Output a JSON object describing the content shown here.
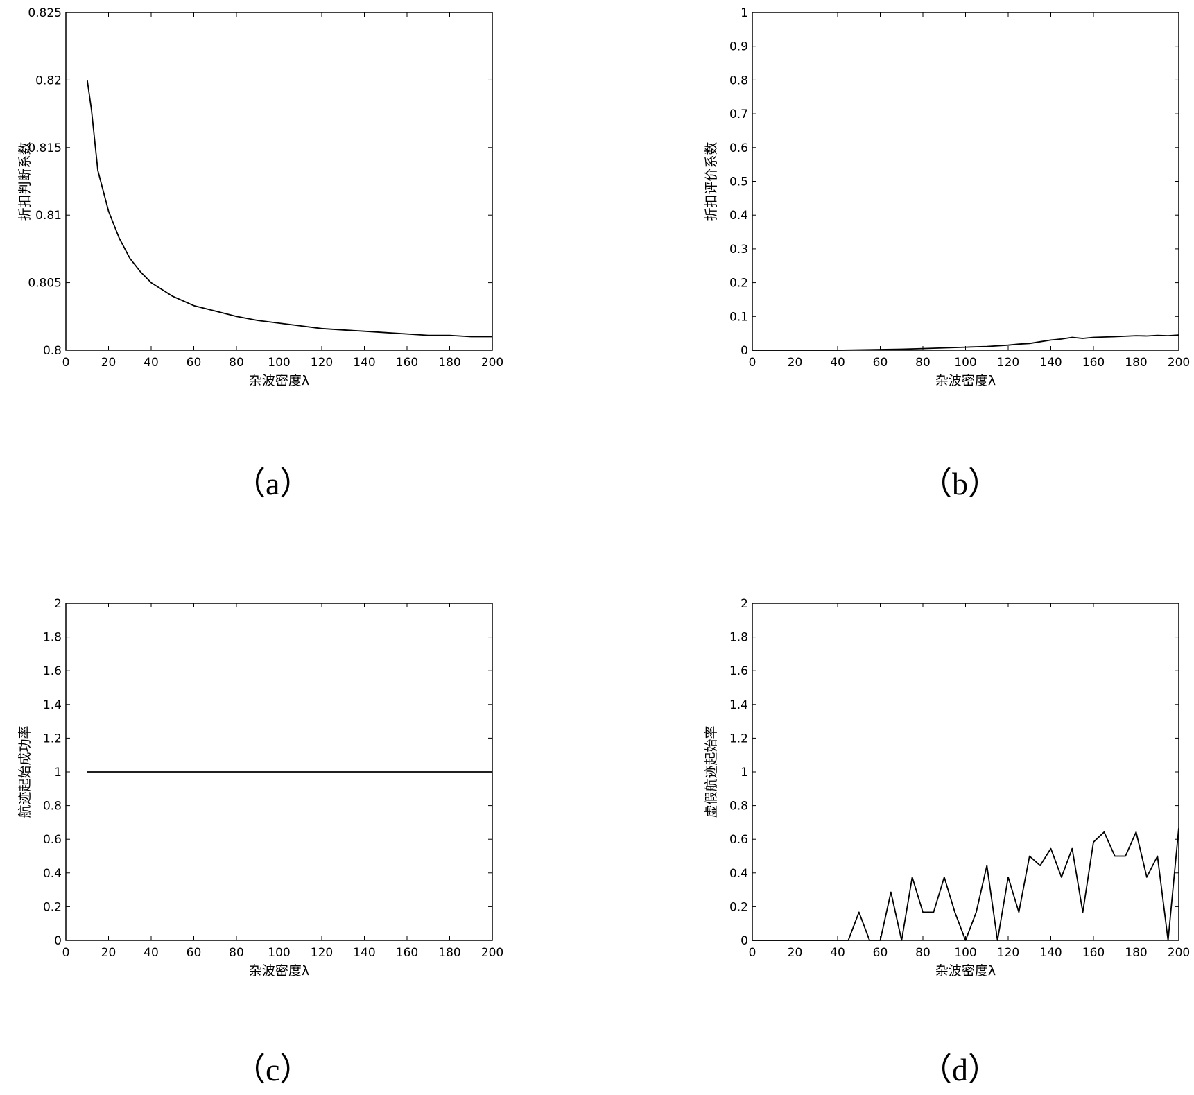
{
  "chart_data": [
    {
      "type": "line",
      "xlabel": "杂波密度λ",
      "ylabel": "折扣判断系数",
      "caption": "（a）",
      "xlim": [
        0,
        200
      ],
      "ylim": [
        0.8,
        0.825
      ],
      "xticks": [
        0,
        20,
        40,
        60,
        80,
        100,
        120,
        140,
        160,
        180,
        200
      ],
      "xtick_labels": [
        "0",
        "20",
        "40",
        "60",
        "80",
        "100",
        "120",
        "140",
        "160",
        "180",
        "200"
      ],
      "yticks": [
        0.8,
        0.805,
        0.81,
        0.815,
        0.82,
        0.825
      ],
      "ytick_labels": [
        "0.8",
        "0.805",
        "0.81",
        "0.815",
        "0.82",
        "0.825"
      ],
      "grid": false,
      "series": [
        {
          "x": [
            10,
            12,
            15,
            20,
            25,
            30,
            35,
            40,
            50,
            60,
            70,
            80,
            90,
            100,
            110,
            120,
            130,
            140,
            150,
            160,
            170,
            180,
            190,
            200
          ],
          "y": [
            0.82,
            0.8178,
            0.8133,
            0.8103,
            0.8083,
            0.8068,
            0.8058,
            0.805,
            0.804,
            0.8033,
            0.8029,
            0.8025,
            0.8022,
            0.802,
            0.8018,
            0.8016,
            0.8015,
            0.8014,
            0.8013,
            0.8012,
            0.8011,
            0.8011,
            0.801,
            0.801
          ]
        }
      ]
    },
    {
      "type": "line",
      "xlabel": "杂波密度λ",
      "ylabel": "折扣评价系数",
      "caption": "（b）",
      "xlim": [
        0,
        200
      ],
      "ylim": [
        0,
        1
      ],
      "xticks": [
        0,
        20,
        40,
        60,
        80,
        100,
        120,
        140,
        160,
        180,
        200
      ],
      "xtick_labels": [
        "0",
        "20",
        "40",
        "60",
        "80",
        "100",
        "120",
        "140",
        "160",
        "180",
        "200"
      ],
      "yticks": [
        0,
        0.1,
        0.2,
        0.3,
        0.4,
        0.5,
        0.6,
        0.7,
        0.8,
        0.9,
        1
      ],
      "ytick_labels": [
        "0",
        "0.1",
        "0.2",
        "0.3",
        "0.4",
        "0.5",
        "0.6",
        "0.7",
        "0.8",
        "0.9",
        "1"
      ],
      "grid": false,
      "series": [
        {
          "x": [
            0,
            40,
            50,
            60,
            70,
            80,
            90,
            100,
            110,
            120,
            125,
            130,
            135,
            140,
            145,
            150,
            155,
            160,
            170,
            180,
            185,
            190,
            195,
            200
          ],
          "y": [
            0,
            0,
            0.001,
            0.002,
            0.003,
            0.005,
            0.007,
            0.009,
            0.011,
            0.015,
            0.018,
            0.02,
            0.025,
            0.03,
            0.033,
            0.038,
            0.035,
            0.038,
            0.04,
            0.043,
            0.042,
            0.044,
            0.043,
            0.045
          ]
        }
      ]
    },
    {
      "type": "line",
      "xlabel": "杂波密度λ",
      "ylabel": "航迹起始成功率",
      "caption": "（c）",
      "xlim": [
        0,
        200
      ],
      "ylim": [
        0,
        2
      ],
      "xticks": [
        0,
        20,
        40,
        60,
        80,
        100,
        120,
        140,
        160,
        180,
        200
      ],
      "xtick_labels": [
        "0",
        "20",
        "40",
        "60",
        "80",
        "100",
        "120",
        "140",
        "160",
        "180",
        "200"
      ],
      "yticks": [
        0,
        0.2,
        0.4,
        0.6,
        0.8,
        1,
        1.2,
        1.4,
        1.6,
        1.8,
        2
      ],
      "ytick_labels": [
        "0",
        "0.2",
        "0.4",
        "0.6",
        "0.8",
        "1",
        "1.2",
        "1.4",
        "1.6",
        "1.8",
        "2"
      ],
      "grid": false,
      "series": [
        {
          "x": [
            10,
            200
          ],
          "y": [
            1,
            1
          ]
        }
      ]
    },
    {
      "type": "line",
      "xlabel": "杂波密度λ",
      "ylabel": "虚假航迹起始率",
      "caption": "（d）",
      "xlim": [
        0,
        200
      ],
      "ylim": [
        0,
        2
      ],
      "xticks": [
        0,
        20,
        40,
        60,
        80,
        100,
        120,
        140,
        160,
        180,
        200
      ],
      "xtick_labels": [
        "0",
        "20",
        "40",
        "60",
        "80",
        "100",
        "120",
        "140",
        "160",
        "180",
        "200"
      ],
      "yticks": [
        0,
        0.2,
        0.4,
        0.6,
        0.8,
        1,
        1.2,
        1.4,
        1.6,
        1.8,
        2
      ],
      "ytick_labels": [
        "0",
        "0.2",
        "0.4",
        "0.6",
        "0.8",
        "1",
        "1.2",
        "1.4",
        "1.6",
        "1.8",
        "2"
      ],
      "grid": false,
      "series": [
        {
          "x": [
            0,
            10,
            20,
            30,
            40,
            45,
            50,
            55,
            60,
            65,
            70,
            75,
            80,
            85,
            90,
            95,
            100,
            105,
            110,
            115,
            120,
            125,
            130,
            135,
            140,
            145,
            150,
            155,
            160,
            165,
            170,
            175,
            180,
            185,
            190,
            195,
            200
          ],
          "y": [
            0,
            0,
            0,
            0,
            0,
            0,
            0.167,
            0,
            0,
            0.286,
            0,
            0.375,
            0.167,
            0.167,
            0.375,
            0.167,
            0,
            0.167,
            0.444,
            0,
            0.375,
            0.167,
            0.5,
            0.444,
            0.545,
            0.375,
            0.545,
            0.167,
            0.583,
            0.643,
            0.5,
            0.5,
            0.643,
            0.375,
            0.5,
            0,
            0.667
          ]
        }
      ]
    }
  ]
}
